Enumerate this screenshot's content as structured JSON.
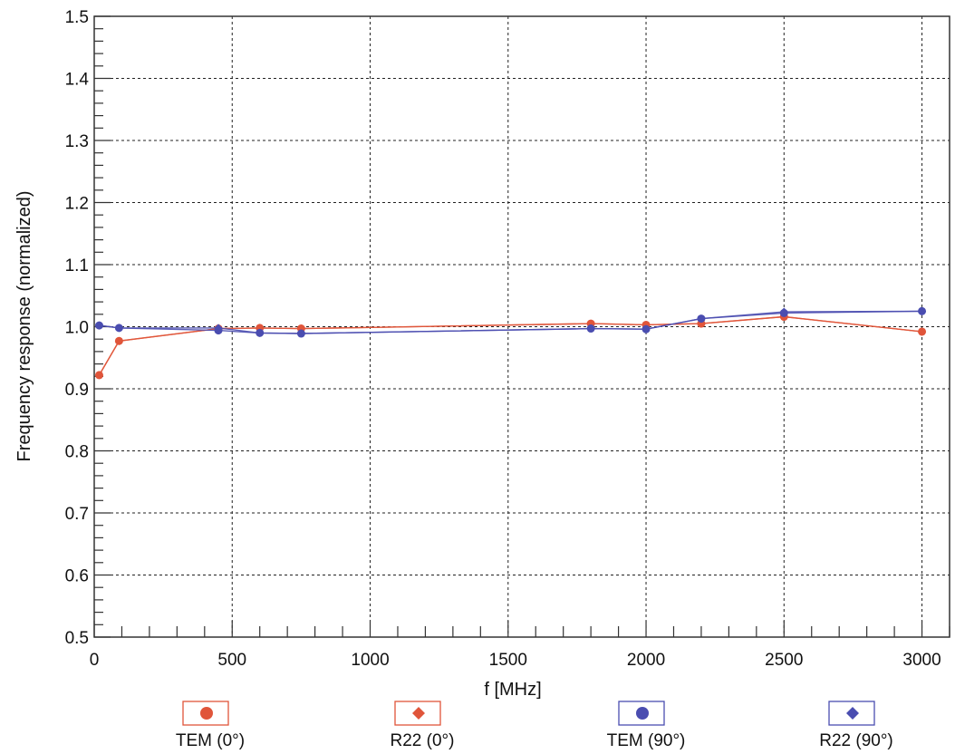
{
  "chart_data": {
    "type": "line",
    "title": "",
    "xlabel": "f [MHz]",
    "ylabel": "Frequency response (normalized)",
    "xlim": [
      0,
      3100
    ],
    "ylim": [
      0.5,
      1.5
    ],
    "x_ticks": [
      0,
      500,
      1000,
      1500,
      2000,
      2500,
      3000
    ],
    "y_ticks": [
      0.5,
      0.6,
      0.7,
      0.8,
      0.9,
      1.0,
      1.1,
      1.2,
      1.3,
      1.4,
      1.5
    ],
    "x_tick_labels": [
      "0",
      "500",
      "1000",
      "1500",
      "2000",
      "2500",
      "3000"
    ],
    "y_tick_labels": [
      "0.5",
      "0.6",
      "0.7",
      "0.8",
      "0.9",
      "1.0",
      "1.1",
      "1.2",
      "1.3",
      "1.4",
      "1.5"
    ],
    "grid": true,
    "legend_position": "bottom",
    "series": [
      {
        "name": "TEM (0°)",
        "marker": "circle",
        "color": "#e0553a",
        "x": [
          18,
          90,
          450,
          600,
          750,
          1800,
          2000,
          2200,
          2500,
          3000
        ],
        "y": [
          0.922,
          0.977,
          0.997,
          0.998,
          0.997,
          1.005,
          1.003,
          1.005,
          1.016,
          0.992
        ]
      },
      {
        "name": "R22 (0°)",
        "marker": "diamond",
        "color": "#e0553a",
        "x": [
          18,
          90,
          450,
          600,
          750,
          1800,
          2000,
          2200,
          2500,
          3000
        ],
        "y": [
          0.922,
          0.977,
          0.997,
          0.998,
          0.997,
          1.005,
          1.003,
          1.005,
          1.016,
          0.992
        ]
      },
      {
        "name": "TEM (90°)",
        "marker": "circle",
        "color": "#4a4db0",
        "x": [
          18,
          90,
          450,
          600,
          750,
          1800,
          2000,
          2200,
          2500,
          3000
        ],
        "y": [
          1.002,
          0.998,
          0.994,
          0.99,
          0.989,
          0.997,
          0.996,
          1.013,
          1.022,
          1.025
        ]
      },
      {
        "name": "R22 (90°)",
        "marker": "diamond",
        "color": "#4a4db0",
        "x": [
          18,
          90,
          450,
          600,
          750,
          1800,
          2000,
          2200,
          2500,
          3000
        ],
        "y": [
          1.002,
          0.998,
          0.998,
          0.99,
          0.989,
          0.997,
          0.996,
          1.013,
          1.024,
          1.025
        ]
      }
    ]
  }
}
